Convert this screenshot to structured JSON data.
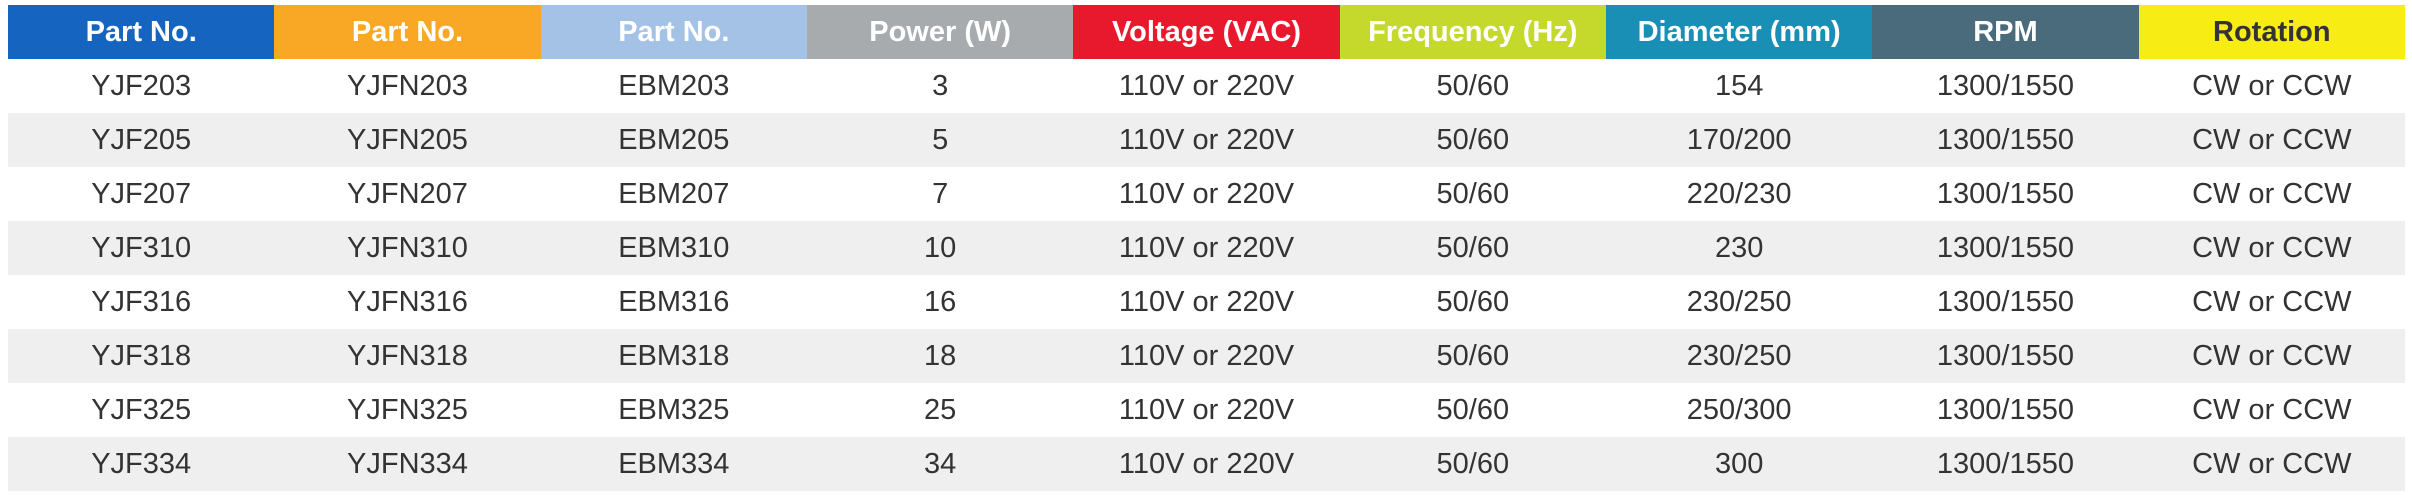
{
  "table": {
    "header": [
      "Part No.",
      "Part No.",
      "Part No.",
      "Power (W)",
      "Voltage (VAC)",
      "Frequency  (Hz)",
      "Diameter (mm)",
      "RPM",
      "Rotation"
    ],
    "rows": [
      [
        "YJF203",
        "YJFN203",
        "EBM203",
        3,
        "110V or 220V",
        "50/60",
        154,
        "1300/1550",
        "CW or CCW"
      ],
      [
        "YJF205",
        "YJFN205",
        "EBM205",
        5,
        "110V or 220V",
        "50/60",
        "170/200",
        "1300/1550",
        "CW or CCW"
      ],
      [
        "YJF207",
        "YJFN207",
        "EBM207",
        7,
        "110V or 220V",
        "50/60",
        "220/230",
        "1300/1550",
        "CW or CCW"
      ],
      [
        "YJF310",
        "YJFN310",
        "EBM310",
        10,
        "110V or 220V",
        "50/60",
        230,
        "1300/1550",
        "CW or CCW"
      ],
      [
        "YJF316",
        "YJFN316",
        "EBM316",
        16,
        "110V or 220V",
        "50/60",
        "230/250",
        "1300/1550",
        "CW or CCW"
      ],
      [
        "YJF318",
        "YJFN318",
        "EBM318",
        18,
        "110V or 220V",
        "50/60",
        "230/250",
        "1300/1550",
        "CW or CCW"
      ],
      [
        "YJF325",
        "YJFN325",
        "EBM325",
        25,
        "110V or 220V",
        "50/60",
        "250/300",
        "1300/1550",
        "CW or CCW"
      ],
      [
        "YJF334",
        "YJFN334",
        "EBM334",
        34,
        "110V or 220V",
        "50/60",
        300,
        "1300/1550",
        "CW or CCW"
      ]
    ]
  }
}
